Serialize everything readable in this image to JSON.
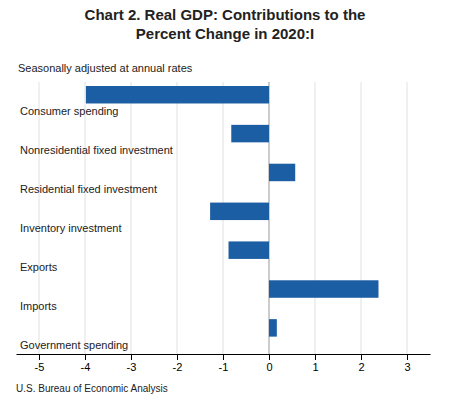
{
  "chart_data": {
    "type": "bar",
    "orientation": "horizontal",
    "title": "Chart 2. Real GDP: Contributions to the\nPercent Change in 2020:I",
    "subtitle": "Seasonally adjusted at annual rates",
    "footnote": "U.S. Bureau of Economic Analysis",
    "categories": [
      "Consumer spending",
      "Nonresidential fixed investment",
      "Residential fixed investment",
      "Inventory investment",
      "Exports",
      "Imports",
      "Government spending"
    ],
    "values": [
      -3.98,
      -0.82,
      0.57,
      -1.28,
      -0.88,
      2.38,
      0.17
    ],
    "color": "#1b5ea3",
    "xlim": [
      -5.5,
      3.5
    ],
    "xticks": [
      -5,
      -4,
      -3,
      -2,
      -1,
      0,
      1,
      2,
      3
    ],
    "grid": true
  }
}
